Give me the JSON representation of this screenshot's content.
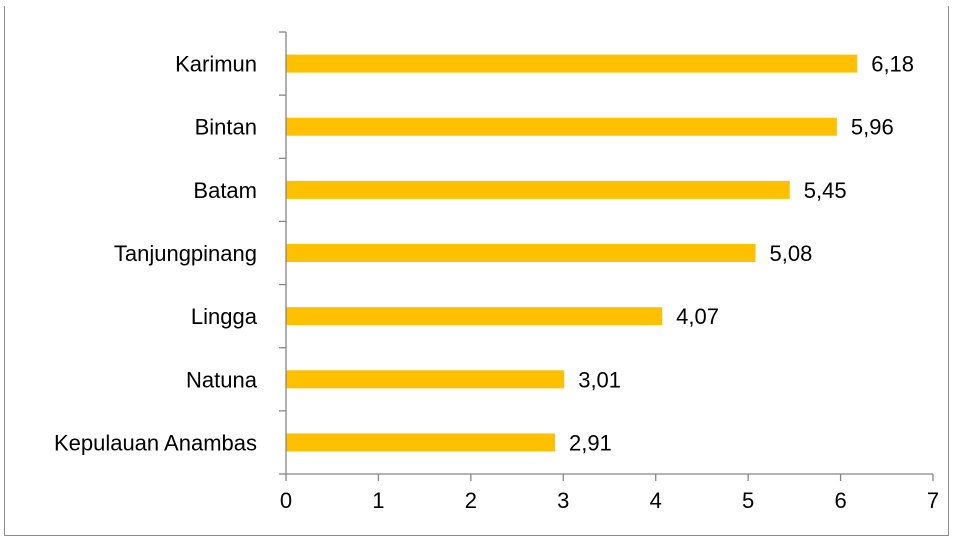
{
  "chart_data": {
    "type": "bar",
    "orientation": "horizontal",
    "title": "",
    "xlabel": "",
    "ylabel": "",
    "categories": [
      "Karimun",
      "Bintan",
      "Batam",
      "Tanjungpinang",
      "Lingga",
      "Natuna",
      "Kepulauan Anambas"
    ],
    "values": [
      6.18,
      5.96,
      5.45,
      5.08,
      4.07,
      3.01,
      2.91
    ],
    "data_labels": [
      "6,18",
      "5,96",
      "5,45",
      "5,08",
      "4,07",
      "3,01",
      "2,91"
    ],
    "xlim": [
      0,
      7
    ],
    "x_ticks": [
      0,
      1,
      2,
      3,
      4,
      5,
      6,
      7
    ],
    "x_tick_labels": [
      "0",
      "1",
      "2",
      "3",
      "4",
      "5",
      "6",
      "7"
    ],
    "grid": false,
    "legend": "none",
    "bar_color": "#FFC000",
    "axis_color": "#868686"
  }
}
